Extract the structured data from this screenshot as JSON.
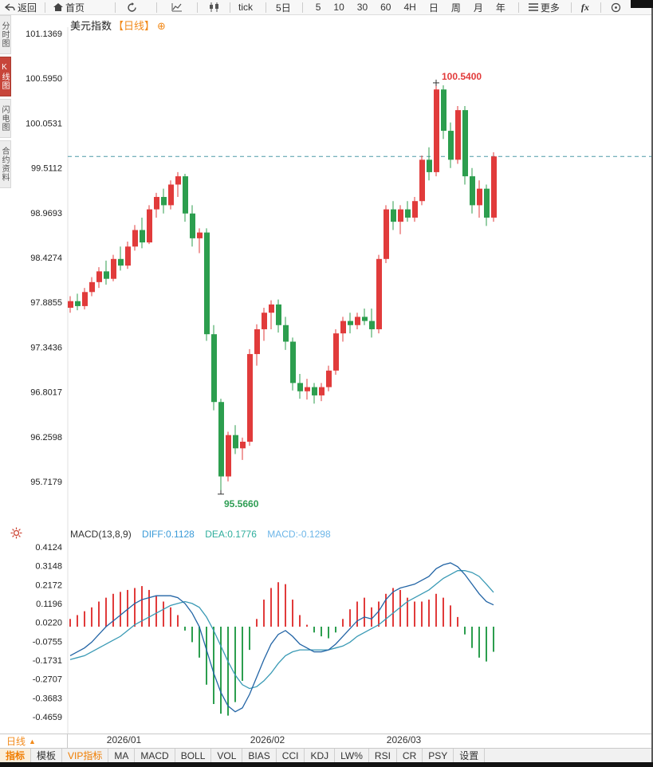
{
  "toolbar": {
    "back": "返回",
    "home": "首页",
    "tick": "tick",
    "five_day": "5日",
    "periods": [
      "5",
      "10",
      "30",
      "60",
      "4H",
      "日",
      "周",
      "月",
      "年"
    ],
    "more": "更多",
    "fx": "fx"
  },
  "sidebar": {
    "items": [
      {
        "label": "分时图",
        "active": false
      },
      {
        "label": "K线图",
        "active": true
      },
      {
        "label": "闪电图",
        "active": false
      },
      {
        "label": "合约资料",
        "active": false
      }
    ]
  },
  "chart_header": {
    "symbol": "美元指数",
    "period_tag": "【日线】",
    "plus_icon": "⊕"
  },
  "macd_header": {
    "name": "MACD(13,8,9)",
    "diff_label": "DIFF:0.1128",
    "dea_label": "DEA:0.1776",
    "macd_label": "MACD:-0.1298"
  },
  "period_box": {
    "label": "日线",
    "arrow": "▲"
  },
  "bottom_tabs": [
    "指标",
    "模板",
    "VIP指标",
    "MA",
    "MACD",
    "BOLL",
    "VOL",
    "BIAS",
    "CCI",
    "KDJ",
    "LW%",
    "RSI",
    "CR",
    "PSY",
    "设置"
  ],
  "chart_data": {
    "type": "candlestick",
    "title": "美元指数 日线",
    "price_axis_labels": [
      "101.1369",
      "100.5950",
      "100.0531",
      "99.5112",
      "98.9693",
      "98.4274",
      "97.8855",
      "97.3436",
      "96.8017",
      "96.2598",
      "95.7179"
    ],
    "price_range": [
      95.7179,
      101.1369
    ],
    "macd_axis_labels": [
      "0.4124",
      "0.3148",
      "0.2172",
      "0.1196",
      "0.0220",
      "-0.0755",
      "-0.1731",
      "-0.2707",
      "-0.3683",
      "-0.4659"
    ],
    "macd_range": [
      -0.4659,
      0.4124
    ],
    "x_labels": [
      {
        "label": "2026/01",
        "index": 7.5
      },
      {
        "label": "2026/02",
        "index": 27.5
      },
      {
        "label": "2026/03",
        "index": 46.5
      }
    ],
    "current_price": 99.65,
    "high_annotation": {
      "index": 51,
      "price": 100.54,
      "label": "100.5400"
    },
    "low_annotation": {
      "index": 21,
      "price": 95.566,
      "label": "95.5660"
    },
    "candles": [
      [
        97.82,
        97.96,
        97.76,
        97.9
      ],
      [
        97.9,
        97.99,
        97.79,
        97.84
      ],
      [
        97.84,
        98.06,
        97.8,
        98.01
      ],
      [
        98.01,
        98.19,
        97.96,
        98.13
      ],
      [
        98.13,
        98.31,
        98.06,
        98.26
      ],
      [
        98.26,
        98.39,
        98.1,
        98.17
      ],
      [
        98.17,
        98.46,
        98.14,
        98.41
      ],
      [
        98.41,
        98.56,
        98.27,
        98.33
      ],
      [
        98.33,
        98.62,
        98.29,
        98.56
      ],
      [
        98.56,
        98.82,
        98.51,
        98.76
      ],
      [
        98.76,
        98.91,
        98.54,
        98.61
      ],
      [
        98.61,
        99.06,
        98.59,
        99.01
      ],
      [
        99.01,
        99.21,
        98.91,
        99.16
      ],
      [
        99.16,
        99.26,
        98.96,
        99.06
      ],
      [
        99.06,
        99.36,
        99.01,
        99.31
      ],
      [
        99.31,
        99.46,
        99.16,
        99.41
      ],
      [
        99.41,
        99.44,
        98.86,
        98.96
      ],
      [
        98.96,
        99.06,
        98.56,
        98.66
      ],
      [
        98.66,
        98.78,
        98.48,
        98.73
      ],
      [
        98.73,
        98.78,
        97.42,
        97.5
      ],
      [
        97.5,
        97.61,
        96.58,
        96.68
      ],
      [
        96.68,
        96.72,
        95.566,
        95.78
      ],
      [
        95.78,
        96.32,
        95.72,
        96.28
      ],
      [
        96.28,
        96.4,
        96.05,
        96.12
      ],
      [
        96.12,
        96.25,
        95.98,
        96.2
      ],
      [
        96.2,
        97.32,
        96.15,
        97.26
      ],
      [
        97.26,
        97.62,
        97.12,
        97.56
      ],
      [
        97.56,
        97.82,
        97.42,
        97.76
      ],
      [
        97.76,
        97.91,
        97.56,
        97.86
      ],
      [
        97.86,
        97.92,
        97.52,
        97.61
      ],
      [
        97.61,
        97.71,
        97.31,
        97.41
      ],
      [
        97.41,
        97.46,
        96.82,
        96.91
      ],
      [
        96.91,
        97.02,
        96.72,
        96.81
      ],
      [
        96.81,
        96.96,
        96.71,
        96.86
      ],
      [
        96.86,
        96.91,
        96.66,
        96.76
      ],
      [
        96.76,
        96.91,
        96.69,
        96.86
      ],
      [
        96.86,
        97.12,
        96.81,
        97.06
      ],
      [
        97.06,
        97.56,
        97.01,
        97.51
      ],
      [
        97.51,
        97.71,
        97.41,
        97.66
      ],
      [
        97.66,
        97.76,
        97.51,
        97.61
      ],
      [
        97.61,
        97.76,
        97.56,
        97.71
      ],
      [
        97.71,
        97.81,
        97.61,
        97.66
      ],
      [
        97.66,
        97.81,
        97.46,
        97.56
      ],
      [
        97.56,
        98.46,
        97.51,
        98.41
      ],
      [
        98.41,
        99.06,
        98.36,
        99.01
      ],
      [
        99.01,
        99.11,
        98.76,
        98.86
      ],
      [
        98.86,
        99.06,
        98.71,
        99.01
      ],
      [
        99.01,
        99.11,
        98.86,
        98.91
      ],
      [
        98.91,
        99.16,
        98.86,
        99.11
      ],
      [
        99.11,
        99.66,
        99.06,
        99.61
      ],
      [
        99.61,
        99.76,
        99.36,
        99.46
      ],
      [
        99.46,
        100.54,
        99.41,
        100.46
      ],
      [
        100.46,
        100.51,
        99.86,
        99.96
      ],
      [
        99.96,
        100.06,
        99.51,
        99.61
      ],
      [
        99.61,
        100.26,
        99.56,
        100.21
      ],
      [
        100.21,
        100.26,
        99.31,
        99.41
      ],
      [
        99.41,
        99.51,
        98.96,
        99.06
      ],
      [
        99.06,
        99.36,
        98.91,
        99.26
      ],
      [
        99.26,
        99.31,
        98.81,
        98.91
      ],
      [
        98.91,
        99.7,
        98.86,
        99.65
      ]
    ],
    "macd": {
      "diff": [
        -0.15,
        -0.13,
        -0.11,
        -0.08,
        -0.04,
        0.0,
        0.03,
        0.06,
        0.09,
        0.12,
        0.14,
        0.15,
        0.16,
        0.16,
        0.16,
        0.15,
        0.12,
        0.07,
        0.0,
        -0.12,
        -0.24,
        -0.34,
        -0.41,
        -0.44,
        -0.42,
        -0.35,
        -0.26,
        -0.17,
        -0.09,
        -0.04,
        -0.02,
        -0.05,
        -0.09,
        -0.11,
        -0.13,
        -0.13,
        -0.12,
        -0.09,
        -0.05,
        -0.01,
        0.03,
        0.05,
        0.04,
        0.08,
        0.14,
        0.18,
        0.2,
        0.21,
        0.22,
        0.24,
        0.26,
        0.3,
        0.32,
        0.33,
        0.31,
        0.27,
        0.22,
        0.17,
        0.13,
        0.1128
      ],
      "dea": [
        -0.17,
        -0.16,
        -0.15,
        -0.13,
        -0.11,
        -0.09,
        -0.07,
        -0.05,
        -0.02,
        0.01,
        0.03,
        0.05,
        0.07,
        0.09,
        0.11,
        0.12,
        0.13,
        0.12,
        0.1,
        0.05,
        -0.02,
        -0.1,
        -0.18,
        -0.25,
        -0.3,
        -0.32,
        -0.31,
        -0.28,
        -0.24,
        -0.19,
        -0.15,
        -0.13,
        -0.12,
        -0.12,
        -0.12,
        -0.12,
        -0.12,
        -0.11,
        -0.1,
        -0.08,
        -0.05,
        -0.03,
        -0.01,
        0.01,
        0.04,
        0.07,
        0.1,
        0.13,
        0.15,
        0.17,
        0.19,
        0.22,
        0.25,
        0.27,
        0.29,
        0.29,
        0.28,
        0.26,
        0.22,
        0.1776
      ],
      "hist": [
        0.04,
        0.06,
        0.08,
        0.1,
        0.13,
        0.15,
        0.17,
        0.18,
        0.19,
        0.2,
        0.21,
        0.19,
        0.16,
        0.13,
        0.1,
        0.06,
        -0.02,
        -0.08,
        -0.16,
        -0.3,
        -0.4,
        -0.45,
        -0.46,
        -0.39,
        -0.28,
        -0.12,
        0.04,
        0.14,
        0.2,
        0.23,
        0.22,
        0.14,
        0.06,
        0.01,
        -0.03,
        -0.05,
        -0.06,
        -0.03,
        0.04,
        0.09,
        0.13,
        0.15,
        0.1,
        0.13,
        0.17,
        0.2,
        0.19,
        0.15,
        0.13,
        0.13,
        0.14,
        0.17,
        0.15,
        0.11,
        0.05,
        -0.04,
        -0.11,
        -0.16,
        -0.18,
        -0.1298
      ]
    },
    "colors": {
      "up": "#e13b3b",
      "down": "#2c9e4e",
      "diff_line": "#2264a5",
      "dea_line": "#3a9ab5",
      "dashed_line": "#4d9aa8",
      "accent_orange": "#f28a1a"
    }
  }
}
